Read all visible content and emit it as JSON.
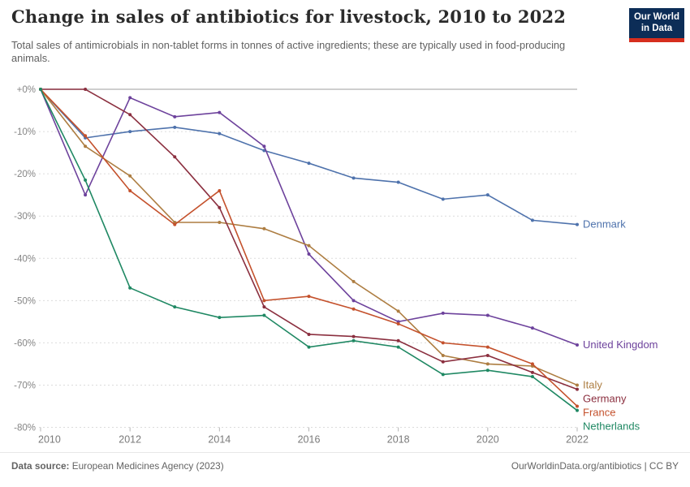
{
  "header": {
    "title": "Change in sales of antibiotics for livestock, 2010 to 2022",
    "subtitle": "Total sales of antimicrobials in non-tablet forms in tonnes of active ingredients; these are typically used in food-producing animals.",
    "logo": {
      "line1": "Our World",
      "line2": "in Data"
    }
  },
  "chart_data": {
    "type": "line",
    "x": [
      2010,
      2011,
      2012,
      2013,
      2014,
      2015,
      2016,
      2017,
      2018,
      2019,
      2020,
      2021,
      2022
    ],
    "series": [
      {
        "name": "Denmark",
        "color": "#4e72ac",
        "values": [
          0,
          -11.5,
          -10,
          -9,
          -10.5,
          -14.5,
          -17.5,
          -21,
          -22,
          -26,
          -25,
          -31,
          -32
        ]
      },
      {
        "name": "United Kingdom",
        "color": "#6d429c",
        "values": [
          0,
          -25,
          -2,
          -6.5,
          -5.5,
          -13.5,
          -39,
          -50,
          -55,
          -53,
          -53.5,
          -56.5,
          -60.5
        ]
      },
      {
        "name": "Italy",
        "color": "#ad7d41",
        "values": [
          0,
          -13.5,
          -20.5,
          -31.5,
          -31.5,
          -33,
          -37,
          -45.5,
          -52.5,
          -63,
          -65,
          -65.5,
          -70
        ]
      },
      {
        "name": "Germany",
        "color": "#8b2f3f",
        "values": [
          0,
          0,
          -6,
          -16,
          -28,
          -51.5,
          -58,
          -58.5,
          -59.5,
          -64.5,
          -63,
          -67,
          -71
        ]
      },
      {
        "name": "France",
        "color": "#c4512c",
        "values": [
          0,
          -11,
          -24,
          -32,
          -24,
          -50,
          -49,
          -52,
          -55.5,
          -60,
          -61,
          -65,
          -75
        ]
      },
      {
        "name": "Netherlands",
        "color": "#1f8863",
        "values": [
          0,
          -21.5,
          -47,
          -51.5,
          -54,
          -53.5,
          -61,
          -59.5,
          -61,
          -67.5,
          -66.5,
          -68,
          -76
        ]
      }
    ],
    "ylim": [
      -80,
      0
    ],
    "yticks": [
      {
        "label": "+0%",
        "value": 0
      },
      {
        "label": "-10%",
        "value": -10
      },
      {
        "label": "-20%",
        "value": -20
      },
      {
        "label": "-30%",
        "value": -30
      },
      {
        "label": "-40%",
        "value": -40
      },
      {
        "label": "-50%",
        "value": -50
      },
      {
        "label": "-60%",
        "value": -60
      },
      {
        "label": "-70%",
        "value": -70
      },
      {
        "label": "-80%",
        "value": -80
      }
    ],
    "xticks": [
      2010,
      2012,
      2014,
      2016,
      2018,
      2020,
      2022
    ],
    "grid": true,
    "legend_position": "right of line endpoints",
    "title": "Change in sales of antibiotics for livestock, 2010 to 2022"
  },
  "footer": {
    "source_label": "Data source:",
    "source_value": " European Medicines Agency (2023)",
    "right_text": "OurWorldinData.org/antibiotics | CC BY"
  },
  "colors": {
    "zero_line": "#b0b0b0",
    "gridline": "#dcdcdc",
    "tick_text": "#858585",
    "logo_bg": "#0c2d57",
    "logo_stripe": "#d62e1e"
  }
}
